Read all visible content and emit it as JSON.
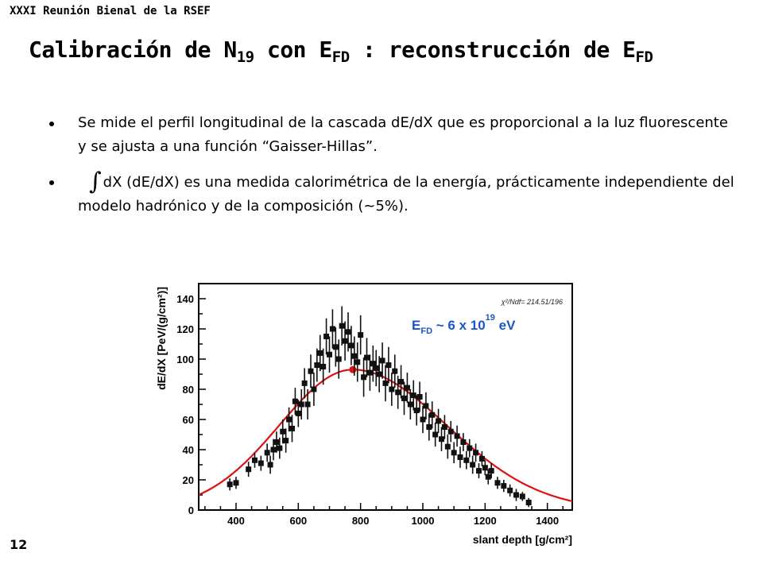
{
  "header": {
    "conference": "XXXI Reunión Bienal de la RSEF"
  },
  "title": {
    "part1": "Calibración de N",
    "sub1": "19",
    "part2": " con E",
    "sub2": "FD",
    "part3": " : reconstrucción de E",
    "sub3": "FD"
  },
  "bullets": [
    {
      "text": "Se mide el perfil longitudinal de la cascada  dE/dX  que es proporcional a la luz fluorescente y se ajusta a una función “Gaisser-Hillas”."
    },
    {
      "symbol": "∫",
      "text": "dX (dE/dX) es una medida calorimétrica de la energía,  prácticamente independiente del modelo hadrónico y de la composición (~5%)."
    }
  ],
  "footer": {
    "slide_number": "12"
  },
  "chart_data": {
    "type": "scatter",
    "xlabel": "slant depth [g/cm²]",
    "ylabel": "dE/dX [PeV/(g/cm²)]",
    "xlim": [
      280,
      1480
    ],
    "ylim": [
      0,
      150
    ],
    "xticks": [
      400,
      600,
      800,
      1000,
      1200,
      1400
    ],
    "yticks": [
      0,
      20,
      40,
      60,
      80,
      100,
      120,
      140
    ],
    "stats_label": "χ²/Ndf= 214.51/196",
    "annotation": {
      "main": "E",
      "sub": "FD",
      "mid": " ~ 6 x 10",
      "sup": "19",
      "end": " eV"
    },
    "colors": {
      "points": "#111111",
      "fit": "#dd1111",
      "annotation": "#1a56c4"
    },
    "fit": {
      "name": "Gaisser-Hillas",
      "x_max": 775,
      "y_max": 93
    },
    "x": [
      380,
      400,
      440,
      460,
      480,
      500,
      510,
      520,
      530,
      540,
      550,
      560,
      570,
      580,
      590,
      600,
      610,
      620,
      630,
      640,
      650,
      660,
      670,
      680,
      690,
      700,
      710,
      720,
      730,
      740,
      750,
      760,
      770,
      780,
      790,
      800,
      810,
      820,
      830,
      840,
      850,
      860,
      870,
      880,
      890,
      900,
      910,
      920,
      930,
      940,
      950,
      960,
      970,
      980,
      990,
      1000,
      1010,
      1020,
      1030,
      1040,
      1050,
      1060,
      1070,
      1080,
      1090,
      1100,
      1110,
      1120,
      1130,
      1140,
      1150,
      1160,
      1170,
      1180,
      1190,
      1200,
      1210,
      1220,
      1240,
      1260,
      1280,
      1300,
      1320,
      1340
    ],
    "y": [
      17,
      18,
      27,
      33,
      31,
      38,
      30,
      40,
      45,
      41,
      52,
      46,
      60,
      54,
      72,
      64,
      70,
      84,
      70,
      92,
      80,
      96,
      104,
      95,
      115,
      103,
      120,
      108,
      100,
      122,
      112,
      118,
      109,
      102,
      98,
      116,
      88,
      101,
      91,
      97,
      94,
      90,
      99,
      84,
      96,
      80,
      92,
      78,
      85,
      74,
      81,
      70,
      76,
      66,
      75,
      60,
      69,
      55,
      63,
      50,
      59,
      47,
      55,
      42,
      52,
      38,
      49,
      35,
      45,
      33,
      41,
      30,
      38,
      26,
      34,
      28,
      22,
      26,
      18,
      16,
      13,
      10,
      9,
      5
    ],
    "err": [
      4,
      4,
      5,
      5,
      5,
      6,
      6,
      7,
      7,
      7,
      8,
      8,
      8,
      9,
      9,
      9,
      10,
      10,
      10,
      11,
      11,
      11,
      12,
      12,
      12,
      12,
      13,
      13,
      13,
      13,
      13,
      13,
      13,
      13,
      13,
      13,
      13,
      13,
      12,
      12,
      12,
      12,
      12,
      12,
      12,
      11,
      11,
      11,
      11,
      11,
      10,
      10,
      10,
      10,
      10,
      9,
      9,
      9,
      9,
      8,
      8,
      8,
      8,
      8,
      7,
      7,
      7,
      7,
      6,
      6,
      6,
      6,
      6,
      5,
      5,
      5,
      5,
      5,
      4,
      4,
      4,
      4,
      3,
      3
    ]
  }
}
